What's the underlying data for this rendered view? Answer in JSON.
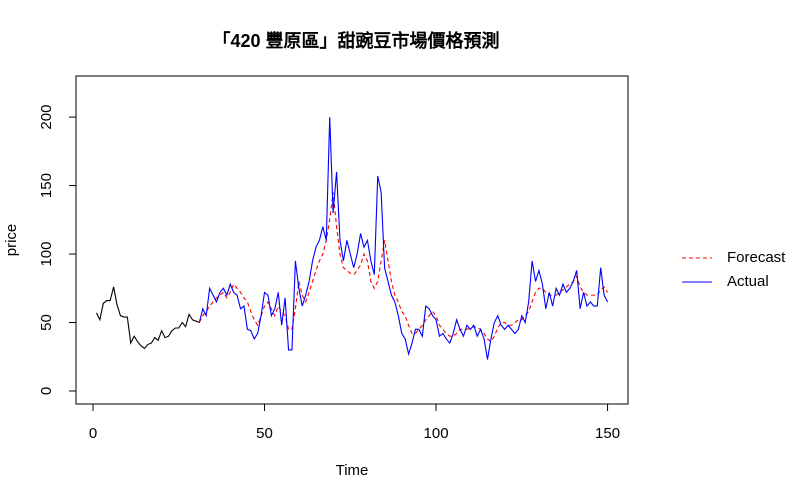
{
  "chart_data": {
    "type": "line",
    "title": "「420 豐原區」甜豌豆市場價格預測",
    "x_label": "Time",
    "y_label": "price",
    "xlim": [
      -4.96,
      155.96
    ],
    "ylim": [
      -9.5,
      230
    ],
    "xticks": [
      0,
      50,
      100,
      150
    ],
    "yticks": [
      0,
      50,
      100,
      150,
      200
    ],
    "grid": false,
    "legend_position": "right",
    "series": [
      {
        "color": "#000000",
        "dashed": false,
        "x": [
          1,
          2,
          3,
          4,
          5,
          6,
          7,
          8,
          9,
          10,
          11,
          12,
          13,
          14,
          15,
          16,
          17,
          18,
          19,
          20,
          21,
          22,
          23,
          24,
          25,
          26,
          27,
          28,
          29,
          30,
          31
        ],
        "values": [
          57,
          52,
          64,
          66,
          66,
          76,
          63,
          55,
          54,
          54,
          35,
          40,
          36,
          33,
          31,
          34,
          35,
          39,
          37,
          44,
          39,
          40,
          44,
          46,
          46,
          50,
          47,
          56,
          52,
          51,
          50
        ]
      },
      {
        "name": "Forecast",
        "color": "#ff0000",
        "dashed": true,
        "x": [
          31,
          32,
          33,
          34,
          35,
          36,
          37,
          38,
          39,
          40,
          41,
          42,
          43,
          44,
          45,
          46,
          47,
          48,
          49,
          50,
          51,
          52,
          53,
          54,
          55,
          56,
          57,
          58,
          59,
          60,
          61,
          62,
          63,
          64,
          65,
          66,
          67,
          68,
          69,
          70,
          71,
          72,
          73,
          74,
          75,
          76,
          77,
          78,
          79,
          80,
          81,
          82,
          83,
          84,
          85,
          86,
          87,
          88,
          89,
          90,
          91,
          92,
          93,
          94,
          95,
          96,
          97,
          98,
          99,
          100,
          101,
          102,
          103,
          104,
          105,
          106,
          107,
          108,
          109,
          110,
          111,
          112,
          113,
          114,
          115,
          116,
          117,
          118,
          119,
          120,
          121,
          122,
          123,
          124,
          125,
          126,
          127,
          128,
          129,
          130,
          131,
          132,
          133,
          134,
          135,
          136,
          137,
          138,
          139,
          140,
          141,
          142,
          143,
          144,
          145,
          146,
          147,
          148,
          149,
          150
        ],
        "values": [
          50,
          55,
          58,
          62,
          65,
          68,
          70,
          72,
          68,
          72,
          78,
          75,
          72,
          68,
          65,
          58,
          52,
          48,
          55,
          62,
          65,
          60,
          55,
          62,
          58,
          55,
          45,
          45,
          60,
          80,
          70,
          65,
          72,
          80,
          88,
          95,
          100,
          110,
          125,
          145,
          120,
          100,
          90,
          88,
          86,
          85,
          88,
          92,
          100,
          95,
          80,
          75,
          80,
          95,
          110,
          95,
          80,
          70,
          65,
          58,
          55,
          48,
          42,
          42,
          45,
          48,
          52,
          55,
          58,
          55,
          48,
          45,
          42,
          40,
          40,
          42,
          45,
          45,
          45,
          46,
          47,
          46,
          45,
          42,
          38,
          36,
          40,
          46,
          50,
          50,
          48,
          48,
          50,
          52,
          52,
          55,
          58,
          65,
          72,
          75,
          75,
          72,
          70,
          70,
          70,
          72,
          74,
          76,
          78,
          80,
          84,
          76,
          72,
          70,
          70,
          70,
          70,
          74,
          76,
          72
        ]
      },
      {
        "name": "Actual",
        "color": "#0000ff",
        "dashed": false,
        "x": [
          31,
          32,
          33,
          34,
          35,
          36,
          37,
          38,
          39,
          40,
          41,
          42,
          43,
          44,
          45,
          46,
          47,
          48,
          49,
          50,
          51,
          52,
          53,
          54,
          55,
          56,
          57,
          58,
          59,
          60,
          61,
          62,
          63,
          64,
          65,
          66,
          67,
          68,
          69,
          70,
          71,
          72,
          73,
          74,
          75,
          76,
          77,
          78,
          79,
          80,
          81,
          82,
          83,
          84,
          85,
          86,
          87,
          88,
          89,
          90,
          91,
          92,
          93,
          94,
          95,
          96,
          97,
          98,
          99,
          100,
          101,
          102,
          103,
          104,
          105,
          106,
          107,
          108,
          109,
          110,
          111,
          112,
          113,
          114,
          115,
          116,
          117,
          118,
          119,
          120,
          121,
          122,
          123,
          124,
          125,
          126,
          127,
          128,
          129,
          130,
          131,
          132,
          133,
          134,
          135,
          136,
          137,
          138,
          139,
          140,
          141,
          142,
          143,
          144,
          145,
          146,
          147,
          148,
          149,
          150
        ],
        "values": [
          50,
          60,
          55,
          75,
          70,
          65,
          72,
          75,
          70,
          78,
          72,
          70,
          60,
          62,
          45,
          44,
          38,
          42,
          55,
          72,
          70,
          55,
          60,
          72,
          48,
          68,
          30,
          30,
          95,
          75,
          62,
          70,
          80,
          95,
          105,
          110,
          120,
          110,
          200,
          130,
          160,
          110,
          95,
          110,
          100,
          90,
          100,
          115,
          105,
          110,
          95,
          85,
          157,
          145,
          90,
          80,
          70,
          65,
          55,
          42,
          38,
          27,
          35,
          45,
          45,
          40,
          62,
          60,
          55,
          52,
          40,
          42,
          38,
          35,
          42,
          52,
          45,
          40,
          48,
          45,
          48,
          40,
          45,
          38,
          23,
          38,
          50,
          55,
          48,
          45,
          48,
          45,
          42,
          45,
          55,
          50,
          65,
          95,
          80,
          88,
          78,
          60,
          72,
          62,
          75,
          70,
          78,
          72,
          75,
          80,
          88,
          60,
          72,
          62,
          65,
          62,
          62,
          90,
          70,
          65
        ]
      }
    ]
  }
}
